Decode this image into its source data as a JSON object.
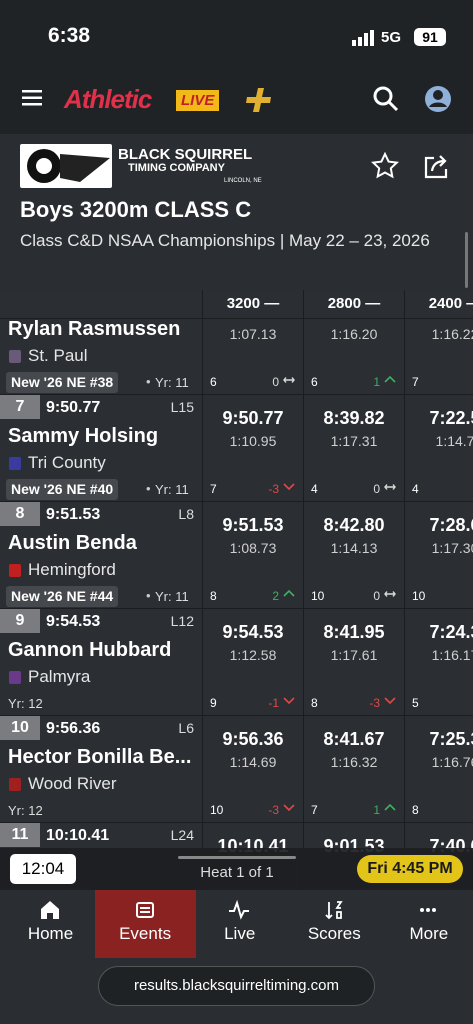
{
  "status_bar": {
    "time": "6:38",
    "network": "5G",
    "battery": "91"
  },
  "nav": {
    "logo": "Athletic",
    "logo_badge": "LIVE"
  },
  "header": {
    "org_name": "BLACK SQUIRREL",
    "org_sub": "TIMING COMPANY",
    "org_location": "LINCOLN, NE",
    "title": "Boys 3200m CLASS C",
    "subtitle": "Class C&D NSAA Championships | May 22 – 23, 2026"
  },
  "table": {
    "columns": [
      "3200 —",
      "2800 —",
      "2400 —"
    ],
    "rows": [
      {
        "name": "Rylan Rasmussen",
        "team": "St. Paul",
        "badge": "New '26 NE #38",
        "year": "Yr: 11",
        "splits": [
          {
            "split": "1:07.13",
            "place": "6",
            "change": "0"
          },
          {
            "split": "1:16.20",
            "place": "6",
            "change": "1"
          },
          {
            "split": "1:16.22",
            "place": "7"
          }
        ]
      },
      {
        "place": "7",
        "time": "9:50.77",
        "lane": "L15",
        "name": "Sammy Holsing",
        "team": "Tri County",
        "badge": "New '26 NE #40",
        "year": "Yr: 11",
        "splits": [
          {
            "cumulative": "9:50.77",
            "split": "1:10.95",
            "place": "7",
            "change": "-3"
          },
          {
            "cumulative": "8:39.82",
            "split": "1:17.31",
            "place": "4",
            "change": "0"
          },
          {
            "cumulative": "7:22.5",
            "split": "1:14.7",
            "place": "4"
          }
        ]
      },
      {
        "place": "8",
        "time": "9:51.53",
        "lane": "L8",
        "name": "Austin Benda",
        "team": "Hemingford",
        "badge": "New '26 NE #44",
        "year": "Yr: 11",
        "splits": [
          {
            "cumulative": "9:51.53",
            "split": "1:08.73",
            "place": "8",
            "change": "2"
          },
          {
            "cumulative": "8:42.80",
            "split": "1:14.13",
            "place": "10",
            "change": "0"
          },
          {
            "cumulative": "7:28.6",
            "split": "1:17.30",
            "place": "10"
          }
        ]
      },
      {
        "place": "9",
        "time": "9:54.53",
        "lane": "L12",
        "name": "Gannon Hubbard",
        "team": "Palmyra",
        "year": "Yr: 12",
        "splits": [
          {
            "cumulative": "9:54.53",
            "split": "1:12.58",
            "place": "9",
            "change": "-1"
          },
          {
            "cumulative": "8:41.95",
            "split": "1:17.61",
            "place": "8",
            "change": "-3"
          },
          {
            "cumulative": "7:24.3",
            "split": "1:16.17",
            "place": "5"
          }
        ]
      },
      {
        "place": "10",
        "time": "9:56.36",
        "lane": "L6",
        "name": "Hector Bonilla Be...",
        "team": "Wood River",
        "year": "Yr: 12",
        "splits": [
          {
            "cumulative": "9:56.36",
            "split": "1:14.69",
            "place": "10",
            "change": "-3"
          },
          {
            "cumulative": "8:41.67",
            "split": "1:16.32",
            "place": "7",
            "change": "1"
          },
          {
            "cumulative": "7:25.3",
            "split": "1:16.76",
            "place": "8"
          }
        ]
      },
      {
        "place": "11",
        "time": "10:10.41",
        "lane": "L24",
        "splits": [
          {
            "cumulative": "10:10.41"
          },
          {
            "cumulative": "9:01.53"
          },
          {
            "cumulative": "7:40.6"
          }
        ]
      }
    ]
  },
  "heat_bar": {
    "clock": "12:04",
    "heat": "Heat 1 of 1",
    "scheduled": "Fri 4:45 PM"
  },
  "tabs": [
    "Home",
    "Events",
    "Live",
    "Scores",
    "More"
  ],
  "url": "results.blacksquirreltiming.com"
}
